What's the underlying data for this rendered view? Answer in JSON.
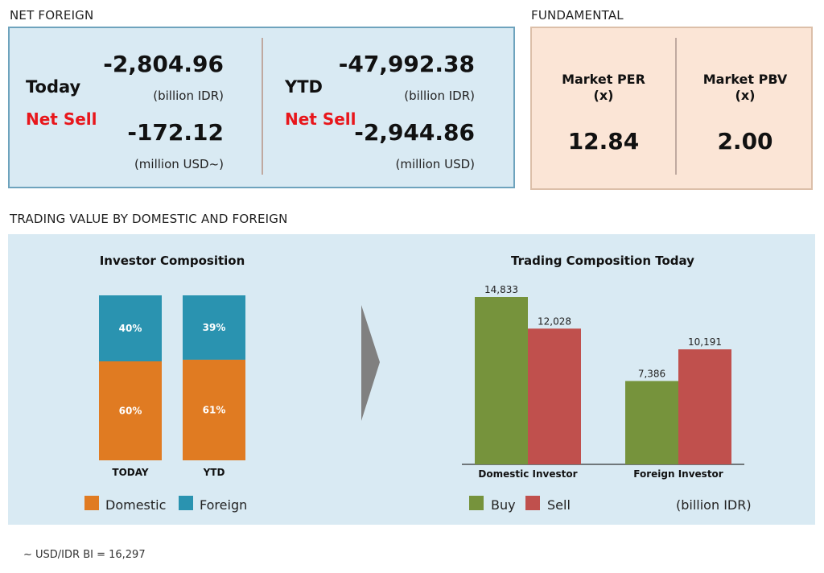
{
  "net_foreign": {
    "title": "NET FOREIGN",
    "today": {
      "label": "Today",
      "status": "Net Sell",
      "idr_value": "-2,804.96",
      "idr_unit": "(billion IDR)",
      "usd_value": "-172.12",
      "usd_unit": "(million USD~)"
    },
    "ytd": {
      "label": "YTD",
      "status": "Net Sell",
      "idr_value": "-47,992.38",
      "idr_unit": "(billion IDR)",
      "usd_value": "-2,944.86",
      "usd_unit": "(million USD)"
    }
  },
  "fundamental": {
    "title": "FUNDAMENTAL",
    "per": {
      "label": "Market PER",
      "unit": "(x)",
      "value": "12.84"
    },
    "pbv": {
      "label": "Market PBV",
      "unit": "(x)",
      "value": "2.00"
    }
  },
  "trading_section": {
    "title": "TRADING VALUE BY DOMESTIC AND FOREIGN"
  },
  "footnote": "~ USD/IDR BI = 16,297",
  "colors": {
    "domestic": "#e07b22",
    "foreign": "#2a93b0",
    "buy": "#76933c",
    "sell": "#c0504d",
    "arrow": "#808080"
  },
  "chart_data": [
    {
      "type": "bar",
      "stacked": true,
      "percent": true,
      "title": "Investor Composition",
      "categories": [
        "TODAY",
        "YTD"
      ],
      "series": [
        {
          "name": "Domestic",
          "values": [
            60,
            61
          ],
          "labels": [
            "60%",
            "61%"
          ]
        },
        {
          "name": "Foreign",
          "values": [
            40,
            39
          ],
          "labels": [
            "40%",
            "39%"
          ]
        }
      ],
      "ylim": [
        0,
        100
      ],
      "legend": "bottom"
    },
    {
      "type": "bar",
      "title": "Trading Composition Today",
      "categories": [
        "Domestic Investor",
        "Foreign Investor"
      ],
      "series": [
        {
          "name": "Buy",
          "values": [
            14833,
            7386
          ],
          "labels": [
            "14,833",
            "7,386"
          ]
        },
        {
          "name": "Sell",
          "values": [
            12028,
            10191
          ],
          "labels": [
            "12,028",
            "10,191"
          ]
        }
      ],
      "unit_note": "(billion IDR)",
      "ylim": [
        0,
        14833
      ],
      "legend": "bottom"
    }
  ]
}
